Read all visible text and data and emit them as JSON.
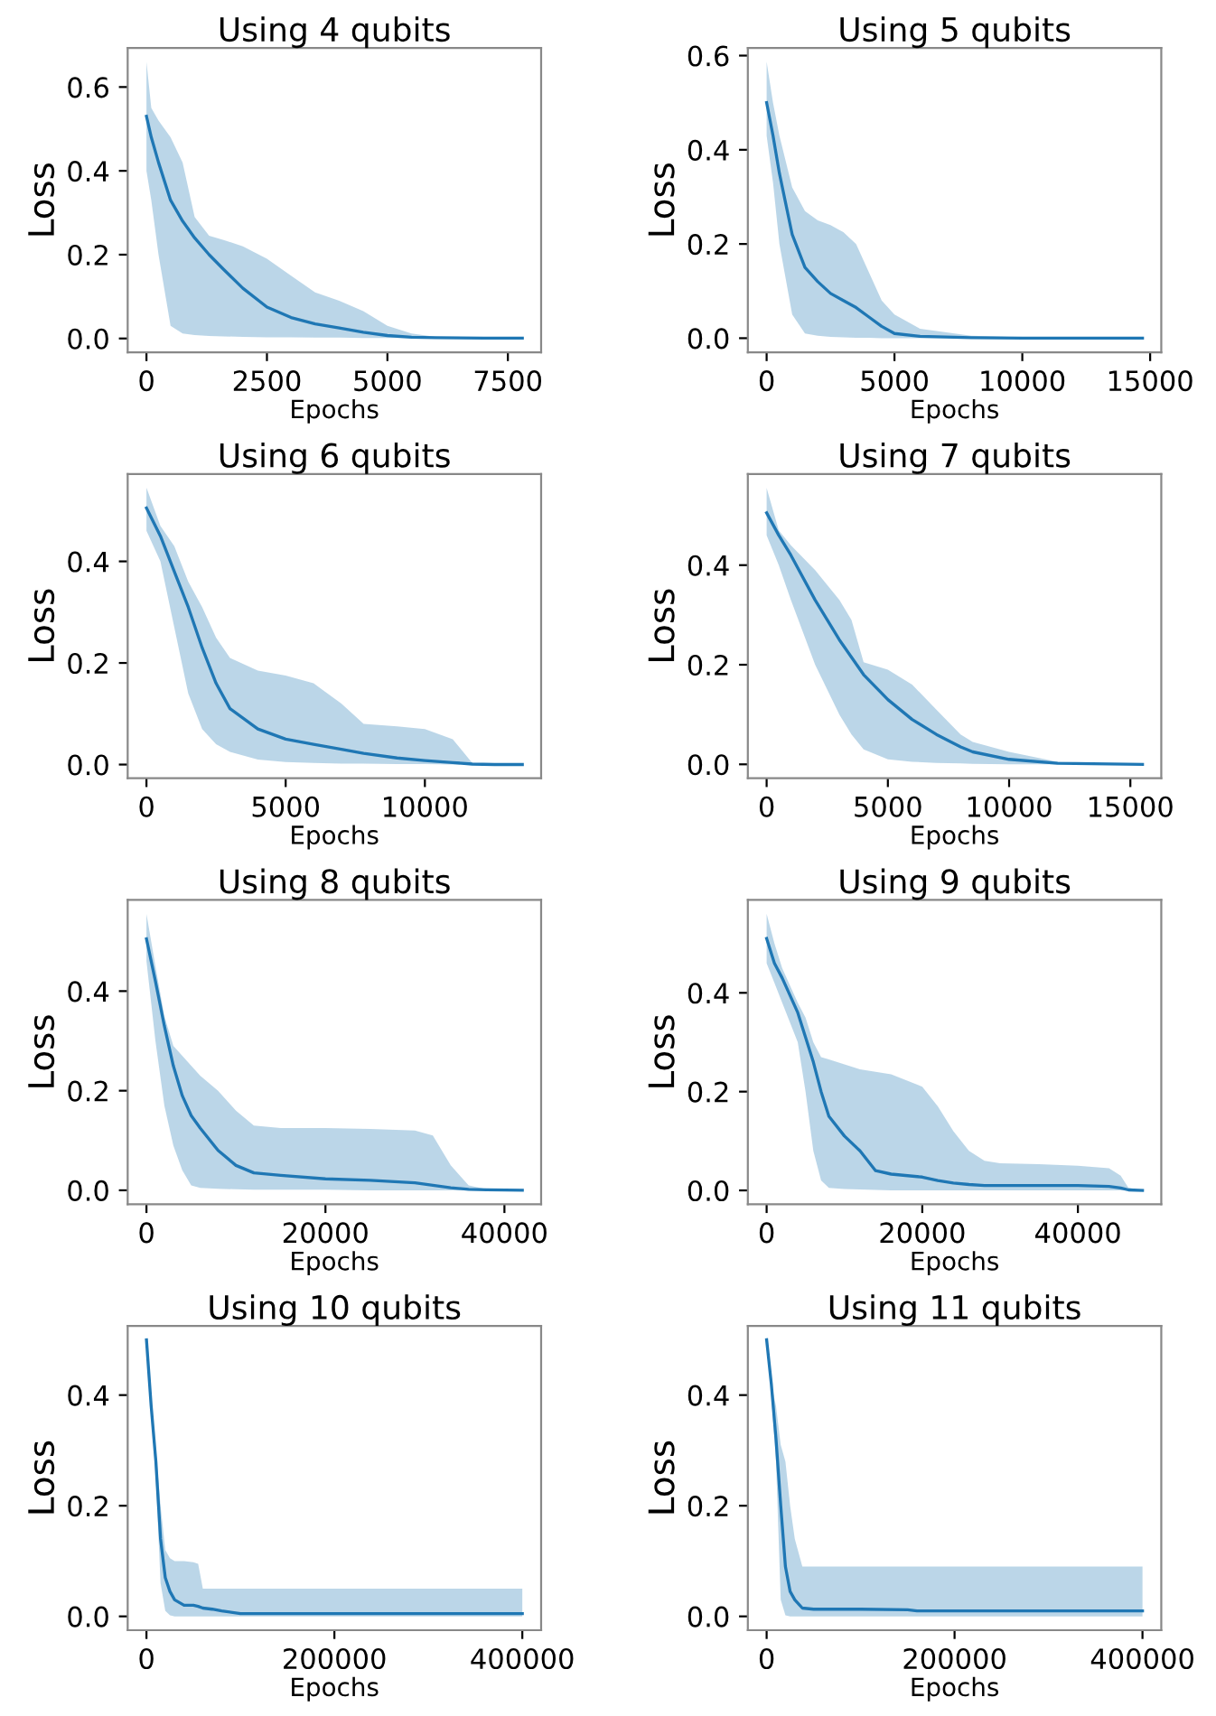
{
  "chart_data": [
    {
      "type": "line",
      "title": "Using 4 qubits",
      "xlabel": "Epochs",
      "ylabel": "Loss",
      "xlim": [
        -390,
        8190
      ],
      "ylim": [
        -0.033,
        0.693
      ],
      "xticks": [
        0,
        2500,
        5000,
        7500
      ],
      "yticks": [
        {
          "value": 0,
          "label": "0.0"
        },
        {
          "value": 0.2,
          "label": "0.2"
        },
        {
          "value": 0.4,
          "label": "0.4"
        },
        {
          "value": 0.6,
          "label": "0.6"
        }
      ],
      "x": [
        0,
        100,
        250,
        500,
        750,
        1000,
        1300,
        1600,
        2000,
        2500,
        3000,
        3500,
        4000,
        4500,
        5000,
        5500,
        6000,
        7000,
        7800
      ],
      "series": [
        {
          "color": "#1f77b4",
          "values": [
            0.53,
            0.48,
            0.42,
            0.33,
            0.28,
            0.24,
            0.2,
            0.165,
            0.12,
            0.075,
            0.05,
            0.035,
            0.025,
            0.015,
            0.007,
            0.003,
            0.002,
            0.001,
            0.001
          ],
          "upper": [
            0.66,
            0.55,
            0.52,
            0.48,
            0.42,
            0.29,
            0.245,
            0.235,
            0.22,
            0.19,
            0.15,
            0.11,
            0.09,
            0.065,
            0.03,
            0.012,
            0.004,
            0.001,
            0.001
          ],
          "lower": [
            0.4,
            0.33,
            0.2,
            0.03,
            0.012,
            0.008,
            0.006,
            0.005,
            0.004,
            0.003,
            0.003,
            0.002,
            0.002,
            0.001,
            0.001,
            0.001,
            0,
            0,
            0
          ]
        }
      ]
    },
    {
      "type": "line",
      "title": "Using 5 qubits",
      "xlabel": "Epochs",
      "ylabel": "Loss",
      "xlim": [
        -735,
        15435
      ],
      "ylim": [
        -0.03,
        0.616
      ],
      "xticks": [
        0,
        5000,
        10000,
        15000
      ],
      "yticks": [
        {
          "value": 0,
          "label": "0.0"
        },
        {
          "value": 0.2,
          "label": "0.2"
        },
        {
          "value": 0.4,
          "label": "0.4"
        },
        {
          "value": 0.6,
          "label": "0.6"
        }
      ],
      "x": [
        0,
        250,
        500,
        1000,
        1500,
        2000,
        2500,
        3000,
        3500,
        4000,
        4500,
        5000,
        6000,
        8000,
        10000,
        14700
      ],
      "series": [
        {
          "color": "#1f77b4",
          "values": [
            0.5,
            0.43,
            0.35,
            0.22,
            0.15,
            0.12,
            0.095,
            0.08,
            0.065,
            0.045,
            0.025,
            0.01,
            0.004,
            0.001,
            0,
            0
          ],
          "upper": [
            0.587,
            0.5,
            0.43,
            0.32,
            0.27,
            0.25,
            0.24,
            0.225,
            0.2,
            0.14,
            0.08,
            0.05,
            0.02,
            0.005,
            0.002,
            0.001
          ],
          "lower": [
            0.43,
            0.33,
            0.2,
            0.05,
            0.01,
            0.005,
            0.003,
            0.002,
            0.001,
            0.001,
            0,
            0,
            0,
            0,
            0,
            0
          ]
        }
      ]
    },
    {
      "type": "line",
      "title": "Using 6 qubits",
      "xlabel": "Epochs",
      "ylabel": "Loss",
      "xlim": [
        -675,
        14175
      ],
      "ylim": [
        -0.027,
        0.572
      ],
      "xticks": [
        0,
        5000,
        10000
      ],
      "yticks": [
        {
          "value": 0,
          "label": "0.0"
        },
        {
          "value": 0.2,
          "label": "0.2"
        },
        {
          "value": 0.4,
          "label": "0.4"
        }
      ],
      "x": [
        0,
        500,
        1000,
        1500,
        2000,
        2500,
        3000,
        4000,
        5000,
        6000,
        7000,
        7800,
        9000,
        10000,
        11000,
        11700,
        12500,
        13500
      ],
      "series": [
        {
          "color": "#1f77b4",
          "values": [
            0.505,
            0.45,
            0.38,
            0.31,
            0.23,
            0.16,
            0.11,
            0.07,
            0.05,
            0.04,
            0.03,
            0.022,
            0.013,
            0.008,
            0.004,
            0.001,
            0,
            0
          ],
          "upper": [
            0.545,
            0.47,
            0.43,
            0.36,
            0.31,
            0.25,
            0.21,
            0.185,
            0.175,
            0.16,
            0.12,
            0.08,
            0.075,
            0.07,
            0.05,
            0.003,
            0.001,
            0
          ],
          "lower": [
            0.46,
            0.4,
            0.27,
            0.14,
            0.07,
            0.04,
            0.025,
            0.01,
            0.005,
            0.003,
            0.002,
            0.002,
            0.001,
            0.001,
            0,
            0,
            0,
            0
          ]
        }
      ]
    },
    {
      "type": "line",
      "title": "Using 7 qubits",
      "xlabel": "Epochs",
      "ylabel": "Loss",
      "xlim": [
        -775,
        16275
      ],
      "ylim": [
        -0.028,
        0.583
      ],
      "xticks": [
        0,
        5000,
        10000,
        15000
      ],
      "yticks": [
        {
          "value": 0,
          "label": "0.0"
        },
        {
          "value": 0.2,
          "label": "0.2"
        },
        {
          "value": 0.4,
          "label": "0.4"
        }
      ],
      "x": [
        0,
        500,
        1000,
        2000,
        3000,
        3500,
        4000,
        5000,
        6000,
        7000,
        8000,
        8500,
        10000,
        12000,
        15500
      ],
      "series": [
        {
          "color": "#1f77b4",
          "values": [
            0.505,
            0.46,
            0.42,
            0.33,
            0.25,
            0.215,
            0.18,
            0.13,
            0.09,
            0.06,
            0.035,
            0.025,
            0.01,
            0.002,
            0
          ],
          "upper": [
            0.555,
            0.47,
            0.44,
            0.39,
            0.33,
            0.29,
            0.205,
            0.19,
            0.16,
            0.11,
            0.06,
            0.045,
            0.025,
            0.005,
            0
          ],
          "lower": [
            0.46,
            0.4,
            0.33,
            0.2,
            0.1,
            0.06,
            0.03,
            0.01,
            0.005,
            0.003,
            0.002,
            0.001,
            0,
            0,
            0
          ]
        }
      ]
    },
    {
      "type": "line",
      "title": "Using 8 qubits",
      "xlabel": "Epochs",
      "ylabel": "Loss",
      "xlim": [
        -2100,
        44100
      ],
      "ylim": [
        -0.028,
        0.583
      ],
      "xticks": [
        0,
        20000,
        40000
      ],
      "yticks": [
        {
          "value": 0,
          "label": "0.0"
        },
        {
          "value": 0.2,
          "label": "0.2"
        },
        {
          "value": 0.4,
          "label": "0.4"
        }
      ],
      "x": [
        0,
        1000,
        2000,
        3000,
        4000,
        5000,
        6000,
        8000,
        10000,
        12000,
        15000,
        20000,
        25000,
        30000,
        32000,
        34000,
        36000,
        38000,
        42000
      ],
      "series": [
        {
          "color": "#1f77b4",
          "values": [
            0.505,
            0.42,
            0.33,
            0.25,
            0.19,
            0.15,
            0.125,
            0.08,
            0.05,
            0.035,
            0.03,
            0.023,
            0.02,
            0.015,
            0.01,
            0.005,
            0.002,
            0.001,
            0
          ],
          "upper": [
            0.555,
            0.45,
            0.35,
            0.29,
            0.27,
            0.25,
            0.23,
            0.2,
            0.16,
            0.13,
            0.125,
            0.125,
            0.123,
            0.12,
            0.11,
            0.05,
            0.01,
            0.002,
            0
          ],
          "lower": [
            0.46,
            0.3,
            0.17,
            0.09,
            0.04,
            0.01,
            0.005,
            0.003,
            0.002,
            0.001,
            0.001,
            0.001,
            0,
            0,
            0,
            0,
            0,
            0,
            0
          ]
        }
      ]
    },
    {
      "type": "line",
      "title": "Using 9 qubits",
      "xlabel": "Epochs",
      "ylabel": "Loss",
      "xlim": [
        -2415,
        50715
      ],
      "ylim": [
        -0.028,
        0.588
      ],
      "xticks": [
        0,
        20000,
        40000
      ],
      "yticks": [
        {
          "value": 0,
          "label": "0.0"
        },
        {
          "value": 0.2,
          "label": "0.2"
        },
        {
          "value": 0.4,
          "label": "0.4"
        }
      ],
      "x": [
        0,
        1000,
        2000,
        4000,
        5000,
        6000,
        7000,
        8000,
        10000,
        12000,
        14000,
        16000,
        20000,
        22000,
        24000,
        26000,
        28000,
        30000,
        35000,
        40000,
        44000,
        45500,
        46500,
        48300
      ],
      "series": [
        {
          "color": "#1f77b4",
          "values": [
            0.51,
            0.46,
            0.43,
            0.36,
            0.31,
            0.26,
            0.2,
            0.15,
            0.11,
            0.08,
            0.04,
            0.033,
            0.027,
            0.02,
            0.015,
            0.012,
            0.01,
            0.01,
            0.01,
            0.01,
            0.008,
            0.005,
            0.001,
            0
          ],
          "upper": [
            0.56,
            0.5,
            0.45,
            0.38,
            0.35,
            0.3,
            0.27,
            0.265,
            0.255,
            0.245,
            0.24,
            0.235,
            0.21,
            0.17,
            0.12,
            0.08,
            0.06,
            0.055,
            0.053,
            0.05,
            0.045,
            0.03,
            0.005,
            0
          ],
          "lower": [
            0.46,
            0.42,
            0.38,
            0.3,
            0.2,
            0.08,
            0.02,
            0.005,
            0.003,
            0.002,
            0.001,
            0,
            0,
            0,
            0,
            0,
            0,
            0,
            0,
            0,
            0,
            0,
            0,
            0
          ]
        }
      ]
    },
    {
      "type": "line",
      "title": "Using 10 qubits",
      "xlabel": "Epochs",
      "ylabel": "Loss",
      "xlim": [
        -20000,
        420000
      ],
      "ylim": [
        -0.025,
        0.525
      ],
      "xticks": [
        0,
        200000,
        400000
      ],
      "yticks": [
        {
          "value": 0,
          "label": "0.0"
        },
        {
          "value": 0.2,
          "label": "0.2"
        },
        {
          "value": 0.4,
          "label": "0.4"
        }
      ],
      "x": [
        0,
        5000,
        10000,
        15000,
        20000,
        25000,
        30000,
        40000,
        50000,
        55000,
        60000,
        70000,
        80000,
        100000,
        150000,
        400000
      ],
      "series": [
        {
          "color": "#1f77b4",
          "values": [
            0.5,
            0.38,
            0.28,
            0.14,
            0.07,
            0.045,
            0.03,
            0.02,
            0.02,
            0.018,
            0.015,
            0.013,
            0.01,
            0.005,
            0.005,
            0.005
          ],
          "upper": [
            0.5,
            0.38,
            0.3,
            0.2,
            0.12,
            0.105,
            0.1,
            0.1,
            0.098,
            0.095,
            0.05,
            0.05,
            0.05,
            0.05,
            0.05,
            0.05
          ],
          "lower": [
            0.5,
            0.38,
            0.25,
            0.06,
            0.01,
            0.002,
            0,
            0,
            0,
            0,
            0,
            0,
            0,
            0,
            0,
            0
          ]
        }
      ]
    },
    {
      "type": "line",
      "title": "Using 11 qubits",
      "xlabel": "Epochs",
      "ylabel": "Loss",
      "xlim": [
        -20000,
        420000
      ],
      "ylim": [
        -0.025,
        0.525
      ],
      "xticks": [
        0,
        200000,
        400000
      ],
      "yticks": [
        {
          "value": 0,
          "label": "0.0"
        },
        {
          "value": 0.2,
          "label": "0.2"
        },
        {
          "value": 0.4,
          "label": "0.4"
        }
      ],
      "x": [
        0,
        5000,
        10000,
        15000,
        20000,
        25000,
        30000,
        38000,
        50000,
        100000,
        150000,
        160000,
        400000
      ],
      "series": [
        {
          "color": "#1f77b4",
          "values": [
            0.5,
            0.42,
            0.32,
            0.2,
            0.09,
            0.045,
            0.03,
            0.015,
            0.013,
            0.013,
            0.012,
            0.01,
            0.01
          ],
          "upper": [
            0.5,
            0.42,
            0.38,
            0.31,
            0.28,
            0.2,
            0.14,
            0.09,
            0.09,
            0.09,
            0.09,
            0.09,
            0.09
          ],
          "lower": [
            0.5,
            0.4,
            0.28,
            0.03,
            0.002,
            0,
            0,
            0,
            0,
            0,
            0,
            0,
            0
          ]
        }
      ]
    }
  ]
}
